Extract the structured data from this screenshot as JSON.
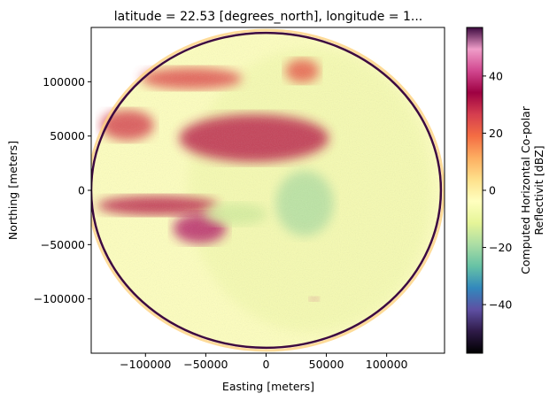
{
  "chart_data": {
    "type": "heatmap",
    "title": "latitude = 22.53 [degrees_north], longitude = 1...",
    "xlabel": "Easting [meters]",
    "ylabel": "Northing [meters]",
    "xlim": [
      -145000,
      148000
    ],
    "ylim": [
      -150000,
      150000
    ],
    "xticks": [
      -100000,
      -50000,
      0,
      50000,
      100000
    ],
    "xtick_labels": [
      "−100000",
      "−50000",
      "0",
      "50000",
      "100000"
    ],
    "yticks": [
      -100000,
      -50000,
      0,
      50000,
      100000
    ],
    "ytick_labels": [
      "−100000",
      "−50000",
      "0",
      "50000",
      "100000"
    ],
    "grid": false,
    "colorbar": {
      "label_lines": [
        "Computed Horizontal Co-polar",
        "Reflectivit [dBZ]"
      ],
      "vmin": -57,
      "vmax": 57,
      "ticks": [
        -40,
        -20,
        0,
        20,
        40
      ],
      "tick_labels": [
        "−40",
        "−20",
        "0",
        "20",
        "40"
      ],
      "colormap": "Spectral_r",
      "stops": [
        "#000000",
        "#2e1a47",
        "#5e4fa2",
        "#3288bd",
        "#66c2a5",
        "#abdda4",
        "#e6f598",
        "#ffffbf",
        "#fee08b",
        "#fdae61",
        "#f46d43",
        "#d53e4f",
        "#9e0142",
        "#d1478f",
        "#ef9cc8",
        "#3d0a40"
      ]
    },
    "radar_range_m": 145000,
    "features": [
      {
        "cx": -10000,
        "cy": 48000,
        "rx": 62000,
        "ry": 22000,
        "dbz": 30
      },
      {
        "cx": -62000,
        "cy": 103000,
        "rx": 42000,
        "ry": 10000,
        "dbz": 24
      },
      {
        "cx": 30000,
        "cy": 110000,
        "rx": 14000,
        "ry": 11000,
        "dbz": 22
      },
      {
        "cx": -115000,
        "cy": 60000,
        "rx": 22000,
        "ry": 14000,
        "dbz": 26
      },
      {
        "cx": -90000,
        "cy": -14000,
        "rx": 50000,
        "ry": 9000,
        "dbz": 30
      },
      {
        "cx": -55000,
        "cy": -35000,
        "rx": 22000,
        "ry": 14000,
        "dbz": 38
      },
      {
        "cx": 32000,
        "cy": -12000,
        "rx": 24000,
        "ry": 30000,
        "dbz": -18
      },
      {
        "cx": -25000,
        "cy": -22000,
        "rx": 26000,
        "ry": 10000,
        "dbz": -14
      },
      {
        "cx": 40000,
        "cy": -100000,
        "rx": 4000,
        "ry": 2000,
        "dbz": 40
      }
    ]
  }
}
